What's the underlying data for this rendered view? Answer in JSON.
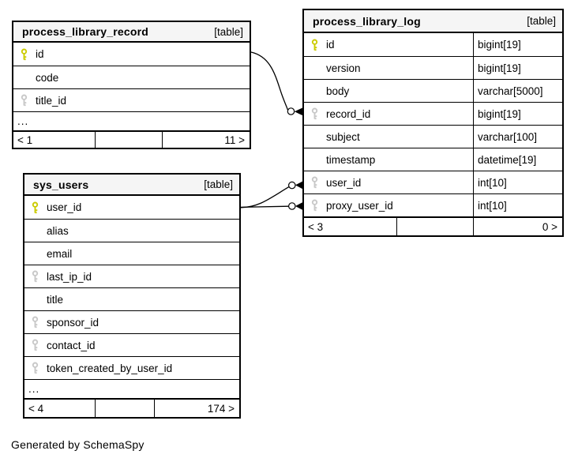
{
  "diagram": {
    "footer_note": "Generated by SchemaSpy",
    "colors": {
      "header_bg": "#f5f5f5",
      "border": "#000000",
      "pk_key": "#cbcb00",
      "fk_key": "#c8c8c8"
    },
    "icons": {
      "primary_key": {
        "glyph": "key",
        "color": "#cbcb00"
      },
      "foreign_key": {
        "glyph": "key",
        "color": "#c8c8c8"
      }
    },
    "tables": [
      {
        "title": "process_library_record",
        "tag": "[table]",
        "columns": [
          {
            "name": "id",
            "key": "primary"
          },
          {
            "name": "code",
            "key": "none"
          },
          {
            "name": "title_id",
            "key": "foreign"
          },
          {
            "name": "...",
            "key": "ellipsis"
          }
        ],
        "footer": {
          "left": "< 1",
          "middle": "",
          "right": "11 >"
        }
      },
      {
        "title": "process_library_log",
        "tag": "[table]",
        "columns": [
          {
            "name": "id",
            "key": "primary",
            "type": "bigint[19]"
          },
          {
            "name": "version",
            "key": "none",
            "type": "bigint[19]"
          },
          {
            "name": "body",
            "key": "none",
            "type": "varchar[5000]"
          },
          {
            "name": "record_id",
            "key": "foreign",
            "type": "bigint[19]"
          },
          {
            "name": "subject",
            "key": "none",
            "type": "varchar[100]"
          },
          {
            "name": "timestamp",
            "key": "none",
            "type": "datetime[19]"
          },
          {
            "name": "user_id",
            "key": "foreign",
            "type": "int[10]"
          },
          {
            "name": "proxy_user_id",
            "key": "foreign",
            "type": "int[10]"
          }
        ],
        "footer": {
          "left": "< 3",
          "middle": "",
          "right": "0 >"
        }
      },
      {
        "title": "sys_users",
        "tag": "[table]",
        "columns": [
          {
            "name": "user_id",
            "key": "primary"
          },
          {
            "name": "alias",
            "key": "none"
          },
          {
            "name": "email",
            "key": "none"
          },
          {
            "name": "last_ip_id",
            "key": "foreign"
          },
          {
            "name": "title",
            "key": "none"
          },
          {
            "name": "sponsor_id",
            "key": "foreign"
          },
          {
            "name": "contact_id",
            "key": "foreign"
          },
          {
            "name": "token_created_by_user_id",
            "key": "foreign"
          },
          {
            "name": "...",
            "key": "ellipsis"
          }
        ],
        "footer": {
          "left": "< 4",
          "middle": "",
          "right": "174 >"
        }
      }
    ],
    "relationships": [
      {
        "from_table": "process_library_record",
        "from_column": "id",
        "to_table": "process_library_log",
        "to_column": "record_id"
      },
      {
        "from_table": "sys_users",
        "from_column": "user_id",
        "to_table": "process_library_log",
        "to_column": "user_id"
      },
      {
        "from_table": "sys_users",
        "from_column": "user_id",
        "to_table": "process_library_log",
        "to_column": "proxy_user_id"
      }
    ]
  }
}
